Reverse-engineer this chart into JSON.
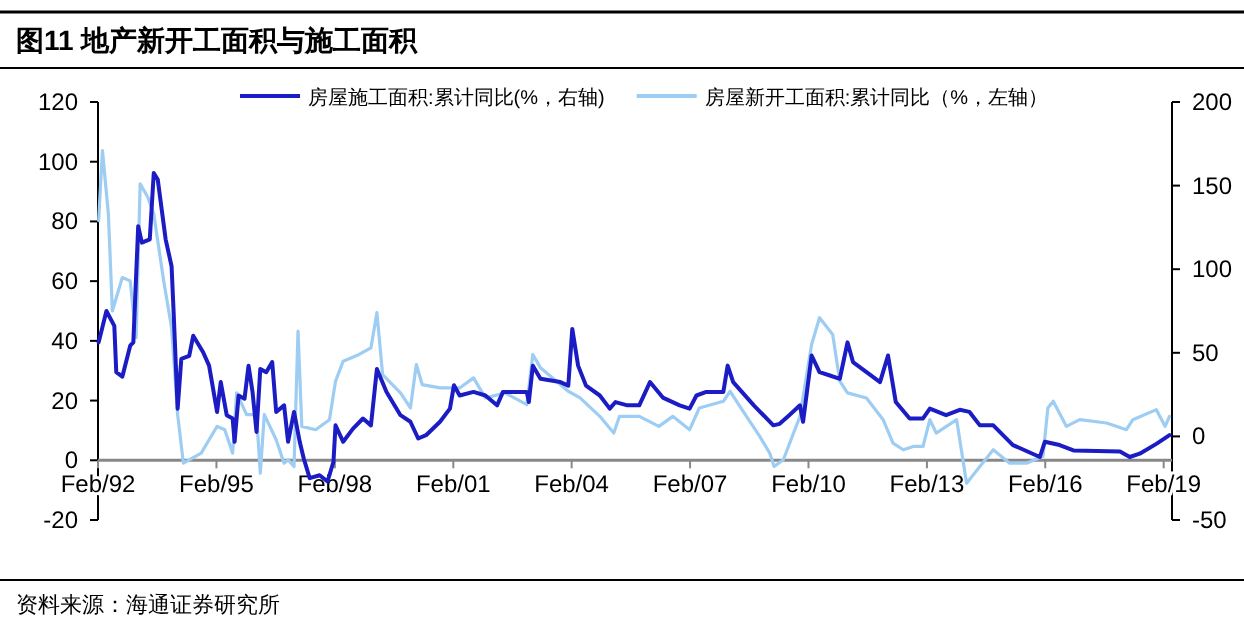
{
  "chart_data": {
    "type": "line",
    "title": "图11 地产新开工面积与施工面积",
    "annotations": [
      "资料来源：海通证券研究所"
    ],
    "xlim": [
      "1992-02-01",
      "2019-04-19"
    ],
    "xticks": [
      {
        "value": "1992-02-01",
        "label": "Feb/92"
      },
      {
        "value": "1995-02-01",
        "label": "Feb/95"
      },
      {
        "value": "1998-02-01",
        "label": "Feb/98"
      },
      {
        "value": "2001-02-01",
        "label": "Feb/01"
      },
      {
        "value": "2004-02-01",
        "label": "Feb/04"
      },
      {
        "value": "2007-02-01",
        "label": "Feb/07"
      },
      {
        "value": "2010-02-01",
        "label": "Feb/10"
      },
      {
        "value": "2013-02-01",
        "label": "Feb/13"
      },
      {
        "value": "2016-02-01",
        "label": "Feb/16"
      },
      {
        "value": "2019-02-01",
        "label": "Feb/19"
      }
    ],
    "ylim": [
      -20,
      120
    ],
    "yticks": [
      -20,
      0,
      20,
      40,
      60,
      80,
      100,
      120
    ],
    "y2lim": [
      -50,
      200
    ],
    "y2ticks": [
      -50,
      0,
      50,
      100,
      150,
      200
    ],
    "legend": "top",
    "grid": false,
    "marker": "none",
    "line_style": "solid",
    "series": [
      {
        "name": "房屋施工面积:累计同比(%，右轴)",
        "color": "#1c1cc4",
        "axis": "y",
        "x": [
          "1992-02-07",
          "1992-04-19",
          "1992-07-01",
          "1992-07-19",
          "1992-09-13",
          "1992-11-25",
          "1992-12-24",
          "1993-02-07",
          "1993-03-13",
          "1993-05-25",
          "1993-07-01",
          "1993-08-07",
          "1993-10-19",
          "1993-12-13",
          "1994-01-01",
          "1994-02-07",
          "1994-03-13",
          "1994-05-25",
          "1994-07-01",
          "1994-10-01",
          "1994-11-25",
          "1995-02-07",
          "1995-03-13",
          "1995-05-07",
          "1995-07-01",
          "1995-07-19",
          "1995-08-25",
          "1995-10-19",
          "1995-11-25",
          "1996-01-01",
          "1996-02-07",
          "1996-03-13",
          "1996-05-07",
          "1996-07-01",
          "1996-08-07",
          "1996-10-19",
          "1996-11-25",
          "1997-01-19",
          "1997-03-13",
          "1997-04-19",
          "1997-06-13",
          "1997-09-13",
          "1997-11-25",
          "1998-01-19",
          "1998-02-07",
          "1998-04-19",
          "1998-07-19",
          "1998-10-19",
          "1999-01-01",
          "1999-02-25",
          "1999-05-25",
          "1999-10-01",
          "2000-01-01",
          "2000-03-13",
          "2000-05-25",
          "2000-10-01",
          "2001-01-01",
          "2001-02-07",
          "2001-04-01",
          "2001-08-07",
          "2001-11-25",
          "2002-03-13",
          "2002-05-07",
          "2002-09-13",
          "2002-12-13",
          "2003-01-01",
          "2003-02-07",
          "2003-04-19",
          "2003-10-19",
          "2004-01-01",
          "2004-02-07",
          "2004-04-01",
          "2004-06-13",
          "2004-10-19",
          "2005-01-19",
          "2005-03-13",
          "2005-07-01",
          "2005-10-19",
          "2006-01-26",
          "2006-05-25",
          "2006-10-28",
          "2007-01-28",
          "2007-04-01",
          "2007-07-01",
          "2007-12-06",
          "2008-01-15",
          "2008-03-06",
          "2008-09-13",
          "2009-03-13",
          "2009-05-10",
          "2009-08-07",
          "2009-11-14",
          "2009-12-13",
          "2010-03-02",
          "2010-05-14",
          "2010-08-18",
          "2010-11-18",
          "2011-01-28",
          "2011-03-20",
          "2011-11-25",
          "2012-02-07",
          "2012-04-19",
          "2012-08-25",
          "2012-12-27",
          "2013-02-28",
          "2013-07-28",
          "2013-12-02",
          "2014-03-02",
          "2014-06-06",
          "2014-10-08",
          "2015-04-08",
          "2015-12-13",
          "2016-01-28",
          "2016-06-13",
          "2016-10-19",
          "2017-12-24",
          "2018-03-24",
          "2018-06-24",
          "2018-11-25",
          "2019-03-27"
        ],
        "values": [
          39.5,
          50,
          45,
          29.5,
          28,
          38.4,
          39.5,
          78.4,
          72.9,
          74,
          96.2,
          94,
          74,
          65,
          49.5,
          17.3,
          34,
          35,
          41.7,
          36.2,
          31.7,
          16.2,
          26.2,
          15.1,
          14,
          6.2,
          21.7,
          20.6,
          31.7,
          22.9,
          9.5,
          30.6,
          29.5,
          32.9,
          16.2,
          18.4,
          6.2,
          16.2,
          6.2,
          0.6,
          -6,
          -5,
          -7.1,
          -0.5,
          11.7,
          6.2,
          10.6,
          14,
          11.7,
          30.6,
          22.9,
          15.1,
          12.9,
          7.3,
          8.4,
          12.9,
          17.3,
          25.1,
          21.7,
          22.9,
          21.7,
          18.4,
          22.9,
          22.9,
          22.9,
          19.5,
          31.7,
          27.3,
          26.2,
          25,
          44,
          31.7,
          25,
          21.7,
          17.3,
          19.5,
          18.4,
          18.4,
          26.2,
          21,
          18.4,
          17.3,
          21.7,
          22.9,
          22.9,
          31.7,
          26.2,
          18.4,
          11.7,
          12.2,
          15.1,
          18.4,
          12.9,
          35.1,
          29.5,
          28.4,
          27.3,
          39.5,
          32.9,
          26.2,
          35.1,
          19.5,
          14,
          14,
          17.3,
          15.1,
          16.9,
          16.2,
          11.7,
          11.7,
          5.1,
          1.1,
          6.2,
          5.1,
          3.3,
          2.9,
          1.1,
          2.2,
          5.5,
          8.4
        ]
      },
      {
        "name": "房屋新开工面积:累计同比（%，左轴）",
        "color": "#9dcdf2",
        "axis": "y2",
        "x": [
          "1992-02-07",
          "1992-03-13",
          "1992-05-07",
          "1992-06-13",
          "1992-09-13",
          "1992-11-25",
          "1993-01-19",
          "1993-02-25",
          "1993-05-07",
          "1993-07-01",
          "1993-10-01",
          "1993-12-13",
          "1994-02-07",
          "1994-04-01",
          "1994-05-25",
          "1994-09-13",
          "1994-11-25",
          "1995-02-07",
          "1995-04-19",
          "1995-07-01",
          "1995-08-07",
          "1995-11-07",
          "1996-02-07",
          "1996-03-13",
          "1996-04-19",
          "1996-08-07",
          "1996-10-19",
          "1996-11-25",
          "1997-01-19",
          "1997-02-25",
          "1997-04-01",
          "1997-08-07",
          "1997-12-13",
          "1998-02-07",
          "1998-04-19",
          "1998-09-13",
          "1999-01-01",
          "1999-02-25",
          "1999-04-19",
          "1999-10-01",
          "2000-01-01",
          "2000-02-25",
          "2000-04-19",
          "2000-10-01",
          "2001-04-01",
          "2001-08-07",
          "2001-11-25",
          "2002-05-25",
          "2002-12-13",
          "2003-02-07",
          "2003-04-19",
          "2004-01-01",
          "2004-04-19",
          "2004-10-19",
          "2005-02-25",
          "2005-04-19",
          "2005-10-19",
          "2006-04-19",
          "2006-08-25",
          "2007-01-28",
          "2007-04-28",
          "2007-12-06",
          "2008-02-07",
          "2008-06-06",
          "2008-11-07",
          "2009-02-07",
          "2009-03-20",
          "2009-06-13",
          "2009-11-14",
          "2010-03-02",
          "2010-05-14",
          "2010-09-13",
          "2010-11-18",
          "2011-01-28",
          "2011-07-22",
          "2011-12-24",
          "2012-03-24",
          "2012-06-27",
          "2012-09-27",
          "2012-12-27",
          "2013-02-28",
          "2013-04-28",
          "2013-11-03",
          "2014-02-03",
          "2014-06-06",
          "2014-10-08",
          "2015-03-09",
          "2015-08-10",
          "2016-01-11",
          "2016-02-25",
          "2016-04-15",
          "2016-08-14",
          "2016-12-16",
          "2017-08-21",
          "2018-02-21",
          "2018-04-22",
          "2018-11-25",
          "2019-02-14",
          "2019-03-27"
        ],
        "values": [
          129,
          171,
          133,
          75,
          95,
          93,
          59,
          151,
          143,
          133,
          93,
          65,
          13,
          -16,
          -14,
          -10,
          -2,
          6,
          4,
          -10,
          26,
          13,
          13,
          -22,
          13,
          -2,
          -16,
          -14,
          -18,
          63,
          6,
          4,
          10,
          33,
          45,
          49,
          53,
          74,
          37,
          26,
          17,
          43,
          31,
          29,
          29,
          35,
          23,
          26,
          19,
          49,
          41,
          27,
          23,
          12,
          2,
          12,
          12,
          6,
          12,
          4,
          17,
          21,
          27,
          15,
          0,
          -10,
          -18,
          -14,
          12,
          55,
          71,
          61,
          33,
          26,
          23,
          10,
          -4,
          -8,
          -6,
          -6,
          10,
          2,
          10,
          -28,
          -18,
          -8,
          -16,
          -16,
          -12,
          17,
          21,
          6,
          10,
          8,
          4,
          10,
          16,
          6,
          12
        ]
      }
    ]
  }
}
